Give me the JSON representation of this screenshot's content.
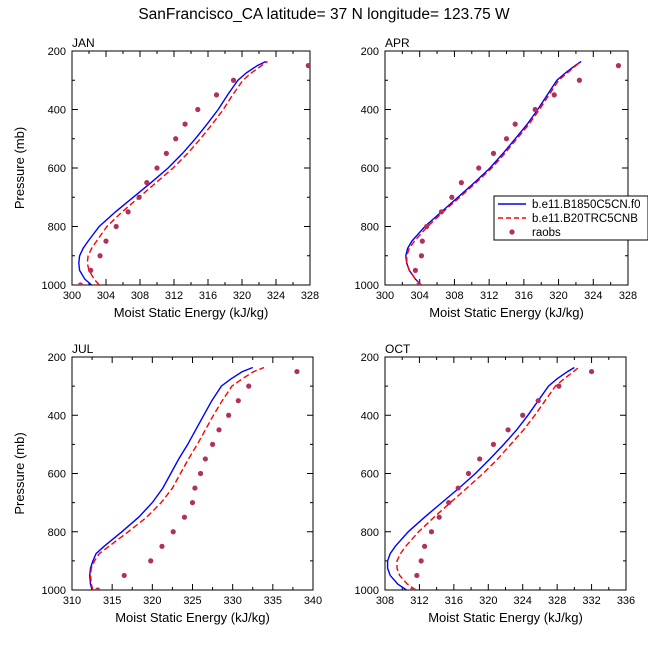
{
  "title": "SanFrancisco_CA  latitude= 37 N longitude= 123.75 W",
  "legend": {
    "entries": [
      {
        "label": "b.e11.B1850C5CN.f0",
        "style": "solid",
        "color": "#0000ff"
      },
      {
        "label": "b.e11.B20TRC5CNB",
        "style": "dashed",
        "color": "#ff0000"
      },
      {
        "label": "raobs",
        "style": "marker",
        "color": "#b03060"
      }
    ]
  },
  "colors": {
    "model1": "#0000ff",
    "model2": "#ff0000",
    "obs": "#b03060"
  },
  "chart_data": [
    {
      "type": "line",
      "panel_label": "JAN",
      "title": "",
      "xlabel": "Moist Static Energy (kJ/kg)",
      "ylabel": "Pressure (mb)",
      "xlim": [
        300,
        328
      ],
      "ylim": [
        1000,
        200
      ],
      "y_reversed": true,
      "xticks": [
        300,
        304,
        308,
        312,
        316,
        320,
        324,
        328
      ],
      "yticks": [
        200,
        400,
        600,
        800,
        1000
      ],
      "series": [
        {
          "name": "b.e11.B1850C5CN.f0",
          "style": "line",
          "pressure": [
            1000,
            980,
            950,
            925,
            900,
            875,
            850,
            800,
            750,
            700,
            650,
            600,
            550,
            500,
            450,
            400,
            350,
            300,
            275,
            250,
            236
          ],
          "mse": [
            302.3,
            301.5,
            300.9,
            300.8,
            300.9,
            301.3,
            301.9,
            303.2,
            305.1,
            307.2,
            309.3,
            311.3,
            313.0,
            314.5,
            315.9,
            317.2,
            318.3,
            319.5,
            320.5,
            321.8,
            322.8
          ]
        },
        {
          "name": "b.e11.B20TRC5CNB",
          "style": "dashed",
          "pressure": [
            1000,
            980,
            950,
            925,
            900,
            875,
            850,
            800,
            750,
            700,
            650,
            600,
            550,
            500,
            450,
            400,
            350,
            300,
            275,
            250,
            236
          ],
          "mse": [
            303.2,
            302.6,
            302.0,
            301.8,
            301.9,
            302.3,
            302.9,
            304.1,
            305.9,
            307.9,
            309.9,
            311.9,
            313.6,
            315.1,
            316.5,
            317.8,
            318.9,
            320.1,
            321.1,
            322.3,
            323.0
          ]
        },
        {
          "name": "raobs",
          "style": "markers",
          "pressure": [
            1000,
            950,
            900,
            850,
            800,
            750,
            700,
            650,
            600,
            550,
            500,
            450,
            400,
            350,
            300,
            250
          ],
          "mse": [
            301.0,
            302.2,
            303.3,
            304.0,
            305.2,
            306.6,
            307.9,
            308.8,
            310.0,
            311.1,
            312.2,
            313.3,
            314.8,
            317.0,
            319.0,
            327.8
          ]
        }
      ]
    },
    {
      "type": "line",
      "panel_label": "APR",
      "title": "",
      "xlabel": "Moist Static Energy (kJ/kg)",
      "ylabel": "",
      "xlim": [
        300,
        328
      ],
      "ylim": [
        1000,
        200
      ],
      "y_reversed": true,
      "xticks": [
        300,
        304,
        308,
        312,
        316,
        320,
        324,
        328
      ],
      "yticks": [
        200,
        400,
        600,
        800,
        1000
      ],
      "series": [
        {
          "name": "b.e11.B1850C5CN.f0",
          "style": "line",
          "pressure": [
            1000,
            980,
            950,
            925,
            900,
            875,
            850,
            800,
            750,
            700,
            650,
            600,
            550,
            500,
            450,
            400,
            350,
            300,
            275,
            250,
            236
          ],
          "mse": [
            304.2,
            303.5,
            302.8,
            302.5,
            302.4,
            302.6,
            303.1,
            304.6,
            306.5,
            308.4,
            310.3,
            312.1,
            313.6,
            315.0,
            316.4,
            317.6,
            318.7,
            319.8,
            320.8,
            321.9,
            322.6
          ]
        },
        {
          "name": "b.e11.B20TRC5CNB",
          "style": "dashed",
          "pressure": [
            1000,
            980,
            950,
            925,
            900,
            875,
            850,
            800,
            750,
            700,
            650,
            600,
            550,
            500,
            450,
            400,
            350,
            300,
            275,
            250,
            236
          ],
          "mse": [
            304.2,
            303.5,
            302.8,
            302.5,
            302.5,
            302.8,
            303.4,
            304.9,
            306.7,
            308.6,
            310.5,
            312.3,
            313.8,
            315.2,
            316.6,
            317.8,
            318.9,
            320.0,
            321.0,
            322.0,
            322.6
          ]
        },
        {
          "name": "raobs",
          "style": "markers",
          "pressure": [
            1000,
            950,
            900,
            850,
            800,
            750,
            700,
            650,
            600,
            550,
            500,
            450,
            400,
            350,
            300,
            250
          ],
          "mse": [
            303.9,
            303.5,
            304.2,
            304.3,
            304.8,
            306.5,
            307.7,
            308.8,
            310.8,
            312.5,
            314.0,
            315.0,
            317.3,
            319.5,
            322.4,
            326.9
          ]
        }
      ]
    },
    {
      "type": "line",
      "panel_label": "JUL",
      "title": "",
      "xlabel": "Moist Static Energy (kJ/kg)",
      "ylabel": "Pressure (mb)",
      "xlim": [
        310,
        340
      ],
      "ylim": [
        1000,
        200
      ],
      "y_reversed": true,
      "xticks": [
        310,
        315,
        320,
        325,
        330,
        335,
        340
      ],
      "yticks": [
        200,
        400,
        600,
        800,
        1000
      ],
      "series": [
        {
          "name": "b.e11.B1850C5CN.f0",
          "style": "line",
          "pressure": [
            1000,
            980,
            950,
            925,
            900,
            875,
            850,
            800,
            750,
            700,
            650,
            600,
            550,
            500,
            450,
            400,
            350,
            300,
            275,
            250,
            236
          ],
          "mse": [
            312.5,
            312.3,
            312.2,
            312.3,
            312.6,
            313.0,
            314.0,
            316.2,
            318.3,
            320.0,
            321.3,
            322.3,
            323.3,
            324.4,
            325.4,
            326.4,
            327.4,
            328.6,
            329.8,
            331.2,
            332.5
          ]
        },
        {
          "name": "b.e11.B20TRC5CNB",
          "style": "dashed",
          "pressure": [
            1000,
            980,
            950,
            925,
            900,
            875,
            850,
            800,
            750,
            700,
            650,
            600,
            550,
            500,
            450,
            400,
            350,
            300,
            275,
            250,
            236
          ],
          "mse": [
            312.6,
            312.4,
            312.3,
            312.4,
            312.8,
            313.4,
            314.6,
            317.0,
            319.3,
            321.1,
            322.5,
            323.5,
            324.5,
            325.6,
            326.6,
            327.6,
            328.7,
            329.9,
            331.2,
            332.6,
            333.9
          ]
        },
        {
          "name": "raobs",
          "style": "markers",
          "pressure": [
            1000,
            950,
            900,
            850,
            800,
            750,
            700,
            650,
            600,
            550,
            500,
            450,
            400,
            350,
            300,
            250
          ],
          "mse": [
            313.2,
            316.5,
            319.8,
            321.2,
            322.6,
            324.0,
            325.0,
            325.3,
            326.0,
            326.6,
            327.5,
            328.3,
            329.5,
            330.7,
            332.0,
            338.0
          ]
        }
      ]
    },
    {
      "type": "line",
      "panel_label": "OCT",
      "title": "",
      "xlabel": "Moist Static Energy (kJ/kg)",
      "ylabel": "",
      "xlim": [
        308,
        336
      ],
      "ylim": [
        1000,
        200
      ],
      "y_reversed": true,
      "xticks": [
        308,
        312,
        316,
        320,
        324,
        328,
        332,
        336
      ],
      "yticks": [
        200,
        400,
        600,
        800,
        1000
      ],
      "series": [
        {
          "name": "b.e11.B1850C5CN.f0",
          "style": "line",
          "pressure": [
            1000,
            980,
            950,
            925,
            900,
            875,
            850,
            800,
            750,
            700,
            650,
            600,
            550,
            500,
            450,
            400,
            350,
            300,
            275,
            250,
            236
          ],
          "mse": [
            310.5,
            309.5,
            308.6,
            308.3,
            308.3,
            308.6,
            309.2,
            310.7,
            312.6,
            314.6,
            316.6,
            318.5,
            320.2,
            321.8,
            323.3,
            324.6,
            325.8,
            327.0,
            328.0,
            329.2,
            330.0
          ]
        },
        {
          "name": "b.e11.B20TRC5CNB",
          "style": "dashed",
          "pressure": [
            1000,
            980,
            950,
            925,
            900,
            875,
            850,
            800,
            750,
            700,
            650,
            600,
            550,
            500,
            450,
            400,
            350,
            300,
            275,
            250,
            236
          ],
          "mse": [
            311.6,
            310.6,
            309.7,
            309.4,
            309.4,
            309.8,
            310.4,
            311.9,
            313.7,
            315.6,
            317.5,
            319.4,
            321.1,
            322.6,
            324.1,
            325.4,
            326.6,
            327.8,
            328.8,
            329.9,
            330.5
          ]
        },
        {
          "name": "raobs",
          "style": "markers",
          "pressure": [
            1000,
            950,
            900,
            850,
            800,
            750,
            700,
            650,
            600,
            550,
            500,
            450,
            400,
            350,
            300,
            250
          ],
          "mse": [
            311.2,
            311.7,
            312.2,
            312.6,
            313.4,
            314.3,
            315.4,
            316.5,
            317.7,
            319.0,
            320.6,
            322.3,
            324.0,
            325.8,
            328.2,
            332.0
          ]
        }
      ]
    }
  ]
}
